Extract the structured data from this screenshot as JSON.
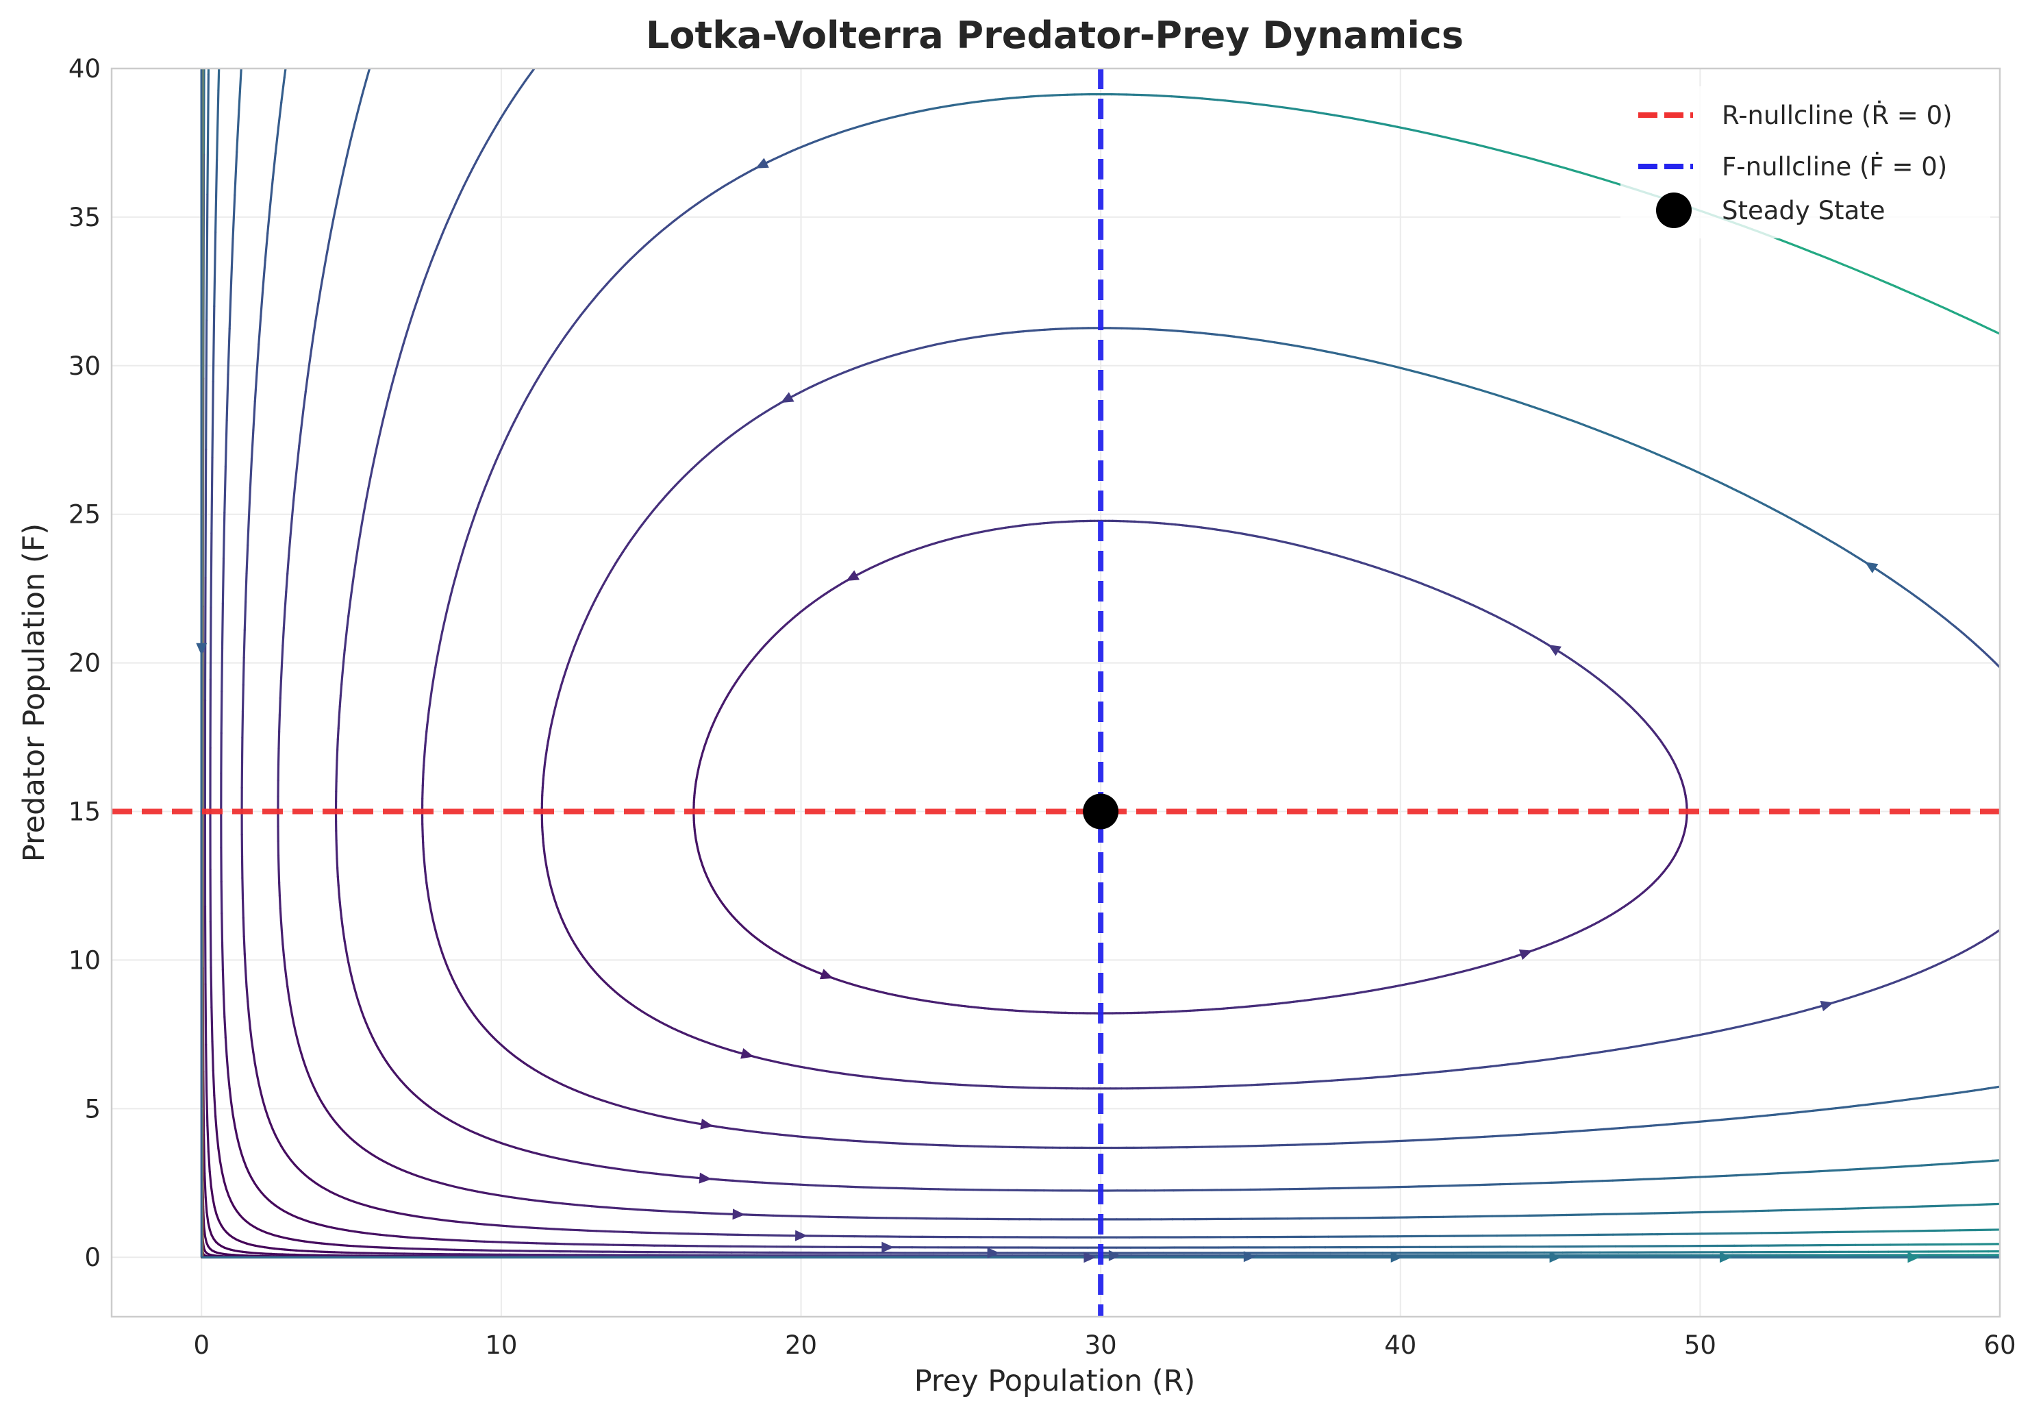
{
  "chart_data": {
    "type": "streamplot",
    "title": "Lotka-Volterra Predator-Prey Dynamics",
    "xlabel": "Prey Population (R)",
    "ylabel": "Predator Population (F)",
    "xlim": [
      -3,
      60
    ],
    "ylim": [
      -2,
      40
    ],
    "xticks": [
      0,
      10,
      20,
      30,
      40,
      50,
      60
    ],
    "yticks": [
      0,
      5,
      10,
      15,
      20,
      25,
      30,
      35,
      40
    ],
    "grid": true,
    "legend_position": "top-right",
    "legend": [
      {
        "label": "R-nullcline (Ṙ = 0)",
        "kind": "dashed-line",
        "color": "#f03232"
      },
      {
        "label": "F-nullcline (Ḟ = 0)",
        "kind": "dashed-line",
        "color": "#2424ee"
      },
      {
        "label": "Steady State",
        "kind": "marker",
        "color": "#000000"
      }
    ],
    "nullclines": {
      "r_nullcline_F": 15,
      "f_nullcline_R": 30
    },
    "steady_state": {
      "R": 30,
      "F": 15
    },
    "colormap": "viridis",
    "color_by": "speed",
    "streamlines": [
      {
        "type": "orbit",
        "level": 0.15
      },
      {
        "type": "orbit",
        "level": 0.35
      },
      {
        "type": "orbit",
        "level": 0.65
      },
      {
        "type": "orbit",
        "level": 1.05
      },
      {
        "type": "orbit",
        "level": 1.55
      },
      {
        "type": "orbit",
        "level": 2.15
      },
      {
        "type": "orbit",
        "level": 2.85
      },
      {
        "type": "orbit",
        "level": 3.65
      },
      {
        "type": "orbit",
        "level": 4.55
      },
      {
        "type": "orbit",
        "level": 5.55
      },
      {
        "type": "orbit",
        "level": 6.65
      },
      {
        "type": "orbit",
        "level": 7.85
      },
      {
        "type": "orbit",
        "level": 9.15
      },
      {
        "type": "orbit",
        "level": 10.6
      },
      {
        "type": "orbit",
        "level": 12.2
      },
      {
        "type": "orbit",
        "level": 14.0
      },
      {
        "type": "orbit",
        "level": 16.0
      },
      {
        "type": "orbit",
        "level": 18.3
      },
      {
        "type": "orbit",
        "level": 21.0
      },
      {
        "type": "orbit",
        "level": 24.0
      },
      {
        "type": "orbit",
        "level": 27.5
      },
      {
        "type": "orbit",
        "level": 31.5
      },
      {
        "type": "orbit",
        "level": 36.0
      },
      {
        "type": "orbit",
        "level": 41.5
      },
      {
        "type": "orbit",
        "level": 48.0
      },
      {
        "type": "orbit",
        "level": 56.0
      },
      {
        "type": "axis-prey",
        "F": 0
      },
      {
        "type": "axis-predator",
        "R": 0
      }
    ]
  }
}
